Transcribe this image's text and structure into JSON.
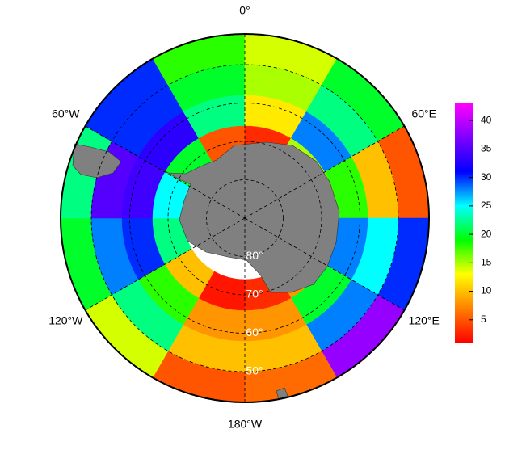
{
  "chart_data": {
    "type": "polar-heatmap",
    "lon_edges": [
      -180,
      -150,
      -120,
      -90,
      -60,
      -30,
      0,
      30,
      60,
      90,
      120,
      150,
      180
    ],
    "lat_edges": [
      42,
      50,
      58,
      66,
      74
    ],
    "values": [
      [
        5,
        14,
        20,
        22,
        30,
        18,
        14,
        20,
        5,
        30,
        38,
        6
      ],
      [
        10,
        22,
        28,
        35,
        30,
        20,
        15,
        22,
        10,
        25,
        28,
        10
      ],
      [
        8,
        18,
        30,
        34,
        33,
        22,
        12,
        28,
        18,
        28,
        20,
        8
      ],
      [
        2,
        10,
        22,
        25,
        20,
        5,
        3,
        15,
        15,
        12,
        8,
        3
      ]
    ],
    "lat_ticks": [
      {
        "value": 80,
        "label": "80°"
      },
      {
        "value": 70,
        "label": "70°"
      },
      {
        "value": 60,
        "label": "60°"
      },
      {
        "value": 50,
        "label": "50°"
      }
    ],
    "lon_ticks": [
      {
        "value": 0,
        "label": "0°"
      },
      {
        "value": 60,
        "label": "60°E"
      },
      {
        "value": 120,
        "label": "120°E"
      },
      {
        "value": 180,
        "label": "180°W"
      },
      {
        "value": -120,
        "label": "120°W"
      },
      {
        "value": -60,
        "label": "60°W"
      }
    ],
    "clim": [
      1,
      43
    ],
    "cticks": [
      5,
      10,
      15,
      20,
      25,
      30,
      35,
      40
    ],
    "colorscale": [
      "#ff0000",
      "#ff8000",
      "#ffff00",
      "#00ff00",
      "#00ffff",
      "#0000ff",
      "#8000ff",
      "#ff00ff"
    ]
  }
}
